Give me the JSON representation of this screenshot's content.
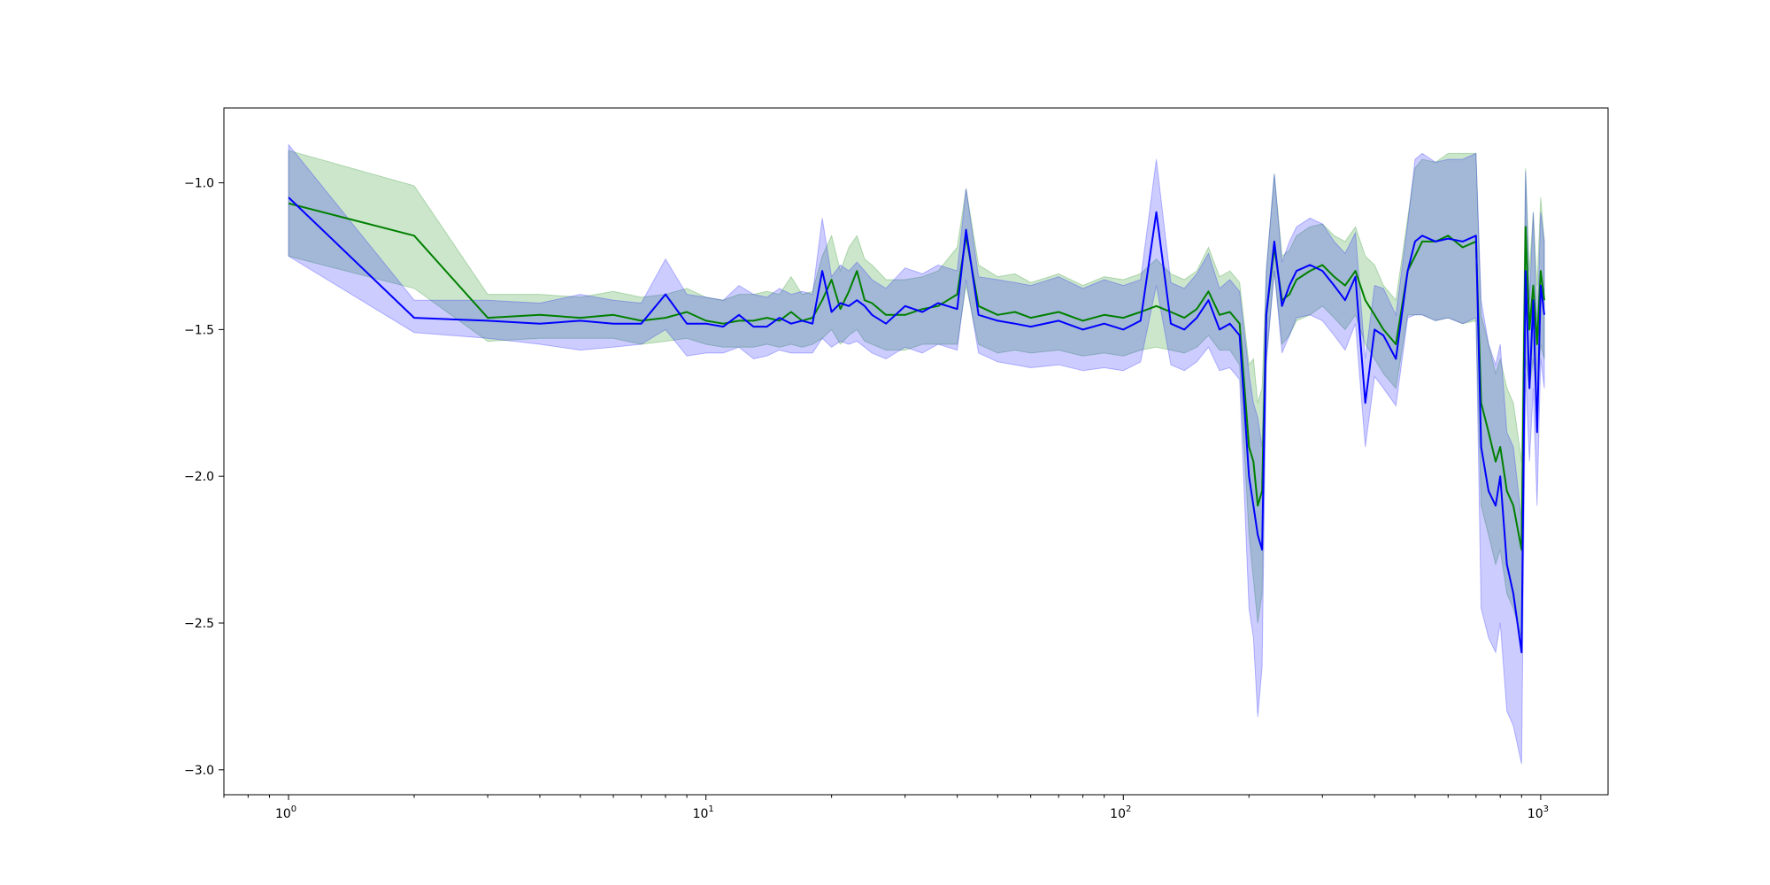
{
  "chart_data": {
    "type": "line",
    "title": "",
    "xlabel": "",
    "ylabel": "",
    "xscale": "log",
    "xlim": [
      0.7,
      1450
    ],
    "ylim": [
      -3.085,
      -0.745
    ],
    "grid": false,
    "x_ticks": [
      {
        "value": 1,
        "base": "10",
        "exp": "0"
      },
      {
        "value": 10,
        "base": "10",
        "exp": "1"
      },
      {
        "value": 100,
        "base": "10",
        "exp": "2"
      },
      {
        "value": 1000,
        "base": "10",
        "exp": "3"
      }
    ],
    "y_ticks": [
      {
        "value": -1.0,
        "label": "−1.0"
      },
      {
        "value": -1.5,
        "label": "−1.5"
      },
      {
        "value": -2.0,
        "label": "−2.0"
      },
      {
        "value": -2.5,
        "label": "−2.5"
      },
      {
        "value": -3.0,
        "label": "−3.0"
      }
    ],
    "series": [
      {
        "color": "#008000",
        "band_color": "#008000",
        "band_opacity": 0.2,
        "x": [
          1,
          2,
          3,
          4,
          5,
          6,
          7,
          8,
          9,
          10,
          11,
          12,
          13,
          14,
          15,
          16,
          17,
          18,
          19,
          20,
          21,
          22,
          23,
          24,
          25,
          27,
          30,
          33,
          36,
          40,
          42,
          45,
          50,
          55,
          60,
          70,
          80,
          90,
          100,
          110,
          120,
          130,
          140,
          150,
          160,
          170,
          180,
          190,
          200,
          205,
          210,
          215,
          220,
          230,
          240,
          250,
          260,
          280,
          300,
          320,
          340,
          360,
          380,
          400,
          420,
          450,
          480,
          500,
          520,
          560,
          600,
          650,
          700,
          720,
          750,
          780,
          800,
          830,
          860,
          900,
          920,
          940,
          960,
          980,
          1000,
          1020
        ],
        "y": [
          -1.07,
          -1.18,
          -1.46,
          -1.45,
          -1.46,
          -1.45,
          -1.47,
          -1.46,
          -1.44,
          -1.47,
          -1.48,
          -1.47,
          -1.47,
          -1.46,
          -1.47,
          -1.44,
          -1.47,
          -1.46,
          -1.4,
          -1.33,
          -1.43,
          -1.37,
          -1.3,
          -1.4,
          -1.41,
          -1.45,
          -1.45,
          -1.43,
          -1.42,
          -1.38,
          -1.18,
          -1.42,
          -1.45,
          -1.44,
          -1.46,
          -1.44,
          -1.47,
          -1.45,
          -1.46,
          -1.44,
          -1.42,
          -1.44,
          -1.46,
          -1.43,
          -1.37,
          -1.45,
          -1.44,
          -1.48,
          -1.9,
          -1.95,
          -2.1,
          -2.05,
          -1.45,
          -1.22,
          -1.4,
          -1.38,
          -1.33,
          -1.3,
          -1.28,
          -1.32,
          -1.35,
          -1.3,
          -1.4,
          -1.45,
          -1.5,
          -1.55,
          -1.3,
          -1.25,
          -1.2,
          -1.2,
          -1.18,
          -1.22,
          -1.2,
          -1.75,
          -1.85,
          -1.95,
          -1.9,
          -2.05,
          -2.1,
          -2.25,
          -1.15,
          -1.5,
          -1.35,
          -1.55,
          -1.3,
          -1.4
        ],
        "lower": [
          -1.25,
          -1.36,
          -1.54,
          -1.53,
          -1.53,
          -1.53,
          -1.55,
          -1.54,
          -1.53,
          -1.55,
          -1.56,
          -1.56,
          -1.56,
          -1.55,
          -1.56,
          -1.55,
          -1.56,
          -1.55,
          -1.53,
          -1.5,
          -1.55,
          -1.52,
          -1.5,
          -1.54,
          -1.55,
          -1.57,
          -1.57,
          -1.55,
          -1.55,
          -1.55,
          -1.35,
          -1.55,
          -1.58,
          -1.57,
          -1.58,
          -1.57,
          -1.59,
          -1.58,
          -1.59,
          -1.57,
          -1.56,
          -1.57,
          -1.58,
          -1.56,
          -1.52,
          -1.57,
          -1.57,
          -1.62,
          -2.2,
          -2.35,
          -2.5,
          -2.4,
          -1.6,
          -1.3,
          -1.55,
          -1.52,
          -1.47,
          -1.45,
          -1.42,
          -1.46,
          -1.5,
          -1.45,
          -1.55,
          -1.6,
          -1.65,
          -1.7,
          -1.45,
          -1.45,
          -1.45,
          -1.47,
          -1.46,
          -1.48,
          -1.47,
          -2.1,
          -2.2,
          -2.3,
          -2.25,
          -2.4,
          -2.45,
          -2.55,
          -1.6,
          -1.7,
          -1.6,
          -1.75,
          -1.55,
          -1.6
        ],
        "upper": [
          -0.89,
          -1.01,
          -1.38,
          -1.38,
          -1.39,
          -1.37,
          -1.39,
          -1.38,
          -1.36,
          -1.39,
          -1.4,
          -1.38,
          -1.38,
          -1.37,
          -1.38,
          -1.32,
          -1.38,
          -1.37,
          -1.25,
          -1.18,
          -1.3,
          -1.22,
          -1.18,
          -1.26,
          -1.28,
          -1.33,
          -1.33,
          -1.32,
          -1.3,
          -1.22,
          -1.02,
          -1.28,
          -1.32,
          -1.31,
          -1.34,
          -1.31,
          -1.35,
          -1.32,
          -1.33,
          -1.31,
          -1.26,
          -1.31,
          -1.33,
          -1.3,
          -1.22,
          -1.32,
          -1.3,
          -1.34,
          -1.62,
          -1.6,
          -1.75,
          -1.7,
          -1.3,
          -0.97,
          -1.25,
          -1.23,
          -1.18,
          -1.15,
          -1.14,
          -1.18,
          -1.2,
          -1.15,
          -1.25,
          -1.28,
          -1.35,
          -1.4,
          -1.12,
          -0.95,
          -0.92,
          -0.93,
          -0.9,
          -0.9,
          -0.9,
          -1.45,
          -1.55,
          -1.65,
          -1.6,
          -1.7,
          -1.75,
          -1.95,
          -0.95,
          -1.3,
          -1.1,
          -1.35,
          -1.05,
          -1.2
        ]
      },
      {
        "color": "#0000ff",
        "band_color": "#0000ff",
        "band_opacity": 0.2,
        "x": [
          1,
          2,
          3,
          4,
          5,
          6,
          7,
          8,
          9,
          10,
          11,
          12,
          13,
          14,
          15,
          16,
          17,
          18,
          19,
          20,
          21,
          22,
          23,
          24,
          25,
          27,
          30,
          33,
          36,
          40,
          42,
          45,
          50,
          55,
          60,
          70,
          80,
          90,
          100,
          110,
          120,
          130,
          140,
          150,
          160,
          170,
          180,
          190,
          200,
          205,
          210,
          215,
          220,
          230,
          240,
          250,
          260,
          280,
          300,
          320,
          340,
          360,
          380,
          400,
          420,
          450,
          480,
          500,
          520,
          560,
          600,
          650,
          700,
          720,
          750,
          780,
          800,
          830,
          860,
          900,
          920,
          940,
          960,
          980,
          1000,
          1020
        ],
        "y": [
          -1.05,
          -1.46,
          -1.47,
          -1.48,
          -1.47,
          -1.48,
          -1.48,
          -1.38,
          -1.48,
          -1.48,
          -1.49,
          -1.45,
          -1.49,
          -1.49,
          -1.46,
          -1.48,
          -1.47,
          -1.48,
          -1.3,
          -1.44,
          -1.41,
          -1.42,
          -1.4,
          -1.42,
          -1.45,
          -1.48,
          -1.42,
          -1.44,
          -1.41,
          -1.43,
          -1.16,
          -1.45,
          -1.47,
          -1.48,
          -1.49,
          -1.47,
          -1.5,
          -1.48,
          -1.5,
          -1.47,
          -1.1,
          -1.48,
          -1.5,
          -1.46,
          -1.4,
          -1.5,
          -1.48,
          -1.52,
          -2.0,
          -2.1,
          -2.2,
          -2.25,
          -1.45,
          -1.2,
          -1.42,
          -1.35,
          -1.3,
          -1.28,
          -1.3,
          -1.35,
          -1.4,
          -1.32,
          -1.75,
          -1.5,
          -1.52,
          -1.6,
          -1.3,
          -1.2,
          -1.18,
          -1.2,
          -1.19,
          -1.2,
          -1.18,
          -1.9,
          -2.05,
          -2.1,
          -2.0,
          -2.3,
          -2.4,
          -2.6,
          -1.3,
          -1.7,
          -1.4,
          -1.85,
          -1.35,
          -1.45
        ],
        "lower": [
          -1.25,
          -1.51,
          -1.53,
          -1.55,
          -1.57,
          -1.56,
          -1.55,
          -1.5,
          -1.59,
          -1.58,
          -1.58,
          -1.56,
          -1.6,
          -1.59,
          -1.57,
          -1.58,
          -1.58,
          -1.58,
          -1.53,
          -1.56,
          -1.54,
          -1.55,
          -1.54,
          -1.56,
          -1.58,
          -1.6,
          -1.56,
          -1.58,
          -1.55,
          -1.57,
          -1.33,
          -1.58,
          -1.61,
          -1.62,
          -1.63,
          -1.62,
          -1.64,
          -1.63,
          -1.64,
          -1.61,
          -1.35,
          -1.62,
          -1.64,
          -1.61,
          -1.56,
          -1.64,
          -1.63,
          -1.67,
          -2.45,
          -2.55,
          -2.82,
          -2.65,
          -1.62,
          -1.3,
          -1.58,
          -1.52,
          -1.46,
          -1.45,
          -1.47,
          -1.52,
          -1.57,
          -1.48,
          -1.9,
          -1.66,
          -1.7,
          -1.76,
          -1.46,
          -1.45,
          -1.45,
          -1.47,
          -1.46,
          -1.48,
          -1.46,
          -2.45,
          -2.55,
          -2.6,
          -2.5,
          -2.8,
          -2.85,
          -2.98,
          -1.65,
          -1.95,
          -1.7,
          -2.1,
          -1.6,
          -1.7
        ],
        "upper": [
          -0.87,
          -1.4,
          -1.4,
          -1.41,
          -1.38,
          -1.4,
          -1.41,
          -1.26,
          -1.38,
          -1.39,
          -1.4,
          -1.35,
          -1.38,
          -1.39,
          -1.36,
          -1.38,
          -1.37,
          -1.38,
          -1.12,
          -1.32,
          -1.28,
          -1.3,
          -1.27,
          -1.3,
          -1.33,
          -1.36,
          -1.29,
          -1.31,
          -1.28,
          -1.3,
          -1.02,
          -1.32,
          -1.33,
          -1.34,
          -1.35,
          -1.32,
          -1.36,
          -1.33,
          -1.35,
          -1.33,
          -0.92,
          -1.34,
          -1.36,
          -1.31,
          -1.24,
          -1.36,
          -1.33,
          -1.37,
          -1.65,
          -1.75,
          -1.8,
          -1.9,
          -1.3,
          -0.97,
          -1.27,
          -1.2,
          -1.15,
          -1.12,
          -1.14,
          -1.2,
          -1.24,
          -1.17,
          -1.6,
          -1.35,
          -1.36,
          -1.45,
          -1.14,
          -0.92,
          -0.9,
          -0.93,
          -0.92,
          -0.92,
          -0.9,
          -1.4,
          -1.55,
          -1.62,
          -1.55,
          -1.85,
          -1.9,
          -2.15,
          -0.96,
          -1.4,
          -1.1,
          -1.5,
          -1.1,
          -1.2
        ]
      }
    ]
  }
}
